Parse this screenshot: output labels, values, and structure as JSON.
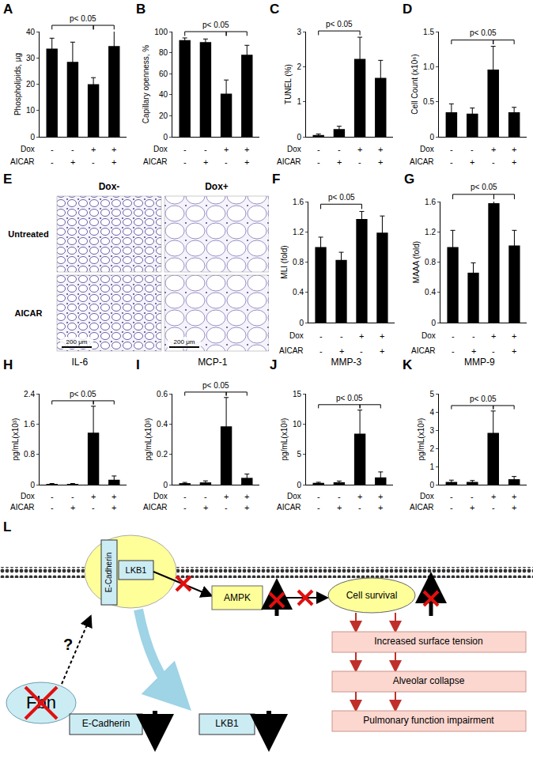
{
  "chart_data": [
    {
      "panel": "A",
      "type": "bar",
      "ylabel": "Phospholipids, μg",
      "categories": [
        null,
        null,
        null,
        null
      ],
      "values": [
        33.5,
        28.5,
        20,
        34.5
      ],
      "errors": [
        4,
        7.5,
        2.5,
        6.5
      ],
      "color": "#000000",
      "ylim": [
        0,
        40
      ],
      "yticks": [
        0,
        10,
        20,
        30,
        40
      ],
      "grid": false,
      "tick_labels": "y",
      "x_table": [
        {
          "label": "Dox",
          "values": [
            "-",
            "-",
            "+",
            "+"
          ]
        },
        {
          "label": "AICAR",
          "values": [
            "-",
            "+",
            "-",
            "+"
          ]
        }
      ],
      "significance": {
        "text": "p< 0.05",
        "brackets": [
          [
            0,
            2
          ],
          [
            2,
            3
          ]
        ]
      }
    },
    {
      "panel": "B",
      "type": "bar",
      "ylabel": "Capillary openness, %",
      "categories": [
        null,
        null,
        null,
        null
      ],
      "values": [
        92,
        90,
        41,
        78
      ],
      "errors": [
        2,
        3,
        13,
        9
      ],
      "color": "#000000",
      "ylim": [
        0,
        100
      ],
      "yticks": [
        0,
        20,
        40,
        60,
        80,
        100
      ],
      "grid": false,
      "tick_labels": "y",
      "x_table": [
        {
          "label": "Dox",
          "values": [
            "-",
            "-",
            "+",
            "+"
          ]
        },
        {
          "label": "AICAR",
          "values": [
            "-",
            "+",
            "-",
            "+"
          ]
        }
      ],
      "significance": {
        "text": "p< 0.05",
        "brackets": [
          [
            0,
            2
          ],
          [
            2,
            3
          ]
        ]
      }
    },
    {
      "panel": "C",
      "type": "bar",
      "ylabel": "TUNEL (%)",
      "categories": [
        null,
        null,
        null,
        null
      ],
      "values": [
        0.05,
        0.22,
        2.22,
        1.68
      ],
      "errors": [
        0.03,
        0.08,
        0.62,
        0.5
      ],
      "color": "#000000",
      "ylim": [
        0,
        3
      ],
      "yticks": [
        0,
        1,
        2,
        3
      ],
      "grid": false,
      "tick_labels": "y",
      "x_table": [
        {
          "label": "Dox",
          "values": [
            "-",
            "-",
            "+",
            "+"
          ]
        },
        {
          "label": "AICAR",
          "values": [
            "-",
            "+",
            "-",
            "+"
          ]
        }
      ],
      "significance": {
        "text": "p< 0.05",
        "brackets": [
          [
            0,
            2
          ]
        ]
      }
    },
    {
      "panel": "D",
      "type": "bar",
      "ylabel": "Cell Count (x10⁶)",
      "categories": [
        null,
        null,
        null,
        null
      ],
      "values": [
        0.35,
        0.33,
        0.96,
        0.35
      ],
      "errors": [
        0.12,
        0.08,
        0.33,
        0.07
      ],
      "color": "#000000",
      "ylim": [
        0,
        1.5
      ],
      "yticks": [
        0,
        0.5,
        {
          "value": 1,
          "label": "1.0"
        },
        1.5
      ],
      "grid": false,
      "tick_labels": "y",
      "x_table": [
        {
          "label": "Dox",
          "values": [
            "-",
            "-",
            "+",
            "+"
          ]
        },
        {
          "label": "AICAR",
          "values": [
            "-",
            "+",
            "-",
            "+"
          ]
        }
      ],
      "significance": {
        "text": "p< 0.05",
        "brackets": [
          [
            0,
            2
          ],
          [
            2,
            3
          ]
        ]
      }
    },
    {
      "panel": "F",
      "type": "bar",
      "ylabel": "MLI (fold)",
      "categories": [
        null,
        null,
        null,
        null
      ],
      "values": [
        1.0,
        0.83,
        1.37,
        1.19
      ],
      "errors": [
        0.13,
        0.1,
        0.1,
        0.22
      ],
      "color": "#000000",
      "ylim": [
        0,
        1.6
      ],
      "yticks": [
        0,
        0.4,
        0.8,
        1.2,
        1.6
      ],
      "grid": false,
      "tick_labels": "y",
      "x_table": [
        {
          "label": "Dox",
          "values": [
            "-",
            "-",
            "+",
            "+"
          ]
        },
        {
          "label": "AICAR",
          "values": [
            "-",
            "+",
            "-",
            "+"
          ]
        }
      ],
      "significance": {
        "text": "p< 0.05",
        "brackets": [
          [
            0,
            2
          ]
        ]
      }
    },
    {
      "panel": "G",
      "type": "bar",
      "ylabel": "MAAA (fold)",
      "categories": [
        null,
        null,
        null,
        null
      ],
      "values": [
        1.0,
        0.66,
        1.58,
        1.02
      ],
      "errors": [
        0.22,
        0.13,
        0.1,
        0.2
      ],
      "color": "#000000",
      "ylim": [
        0,
        1.6
      ],
      "yticks": [
        0,
        0.4,
        0.8,
        1.2,
        1.6
      ],
      "grid": false,
      "tick_labels": "y",
      "x_table": [
        {
          "label": "Dox",
          "values": [
            "-",
            "-",
            "+",
            "+"
          ]
        },
        {
          "label": "AICAR",
          "values": [
            "-",
            "+",
            "-",
            "+"
          ]
        }
      ],
      "significance": {
        "text": "p< 0.05",
        "brackets": [
          [
            0,
            2
          ],
          [
            2,
            3
          ]
        ]
      }
    },
    {
      "panel": "H",
      "type": "bar",
      "title": "IL-6",
      "ylabel": "pg/mL(x10³)",
      "categories": [
        null,
        null,
        null,
        null
      ],
      "values": [
        0.02,
        0.02,
        1.37,
        0.13
      ],
      "errors": [
        0.01,
        0.01,
        0.7,
        0.1
      ],
      "color": "#000000",
      "ylim": [
        0,
        2.4
      ],
      "yticks": [
        0,
        0.8,
        1.6,
        2.4
      ],
      "grid": false,
      "tick_labels": "y",
      "x_table": [
        {
          "label": "Dox",
          "values": [
            "-",
            "-",
            "+",
            "+"
          ]
        },
        {
          "label": "AICAR",
          "values": [
            "-",
            "+",
            "-",
            "+"
          ]
        }
      ],
      "significance": {
        "text": "p< 0.05",
        "brackets": [
          [
            0,
            2
          ],
          [
            2,
            3
          ]
        ]
      }
    },
    {
      "panel": "I",
      "type": "bar",
      "title": "MCP-1",
      "ylabel": "pg/mL(x10³)",
      "categories": [
        null,
        null,
        null,
        null
      ],
      "values": [
        0.01,
        0.015,
        0.385,
        0.045
      ],
      "errors": [
        0.005,
        0.01,
        0.19,
        0.025
      ],
      "color": "#000000",
      "ylim": [
        0,
        0.6
      ],
      "yticks": [
        0,
        0.2,
        0.4,
        0.6
      ],
      "grid": false,
      "tick_labels": "y",
      "x_table": [
        {
          "label": "Dox",
          "values": [
            "-",
            "-",
            "+",
            "+"
          ]
        },
        {
          "label": "AICAR",
          "values": [
            "-",
            "+",
            "-",
            "+"
          ]
        }
      ],
      "significance": {
        "text": "p< 0.05",
        "brackets": [
          [
            0,
            2
          ],
          [
            2,
            3
          ]
        ]
      }
    },
    {
      "panel": "J",
      "type": "bar",
      "title": "MMP-3",
      "ylabel": "pg/mL(x10³)",
      "categories": [
        null,
        null,
        null,
        null
      ],
      "values": [
        0.3,
        0.4,
        8.4,
        1.2
      ],
      "errors": [
        0.1,
        0.2,
        3.9,
        0.9
      ],
      "color": "#000000",
      "ylim": [
        0,
        15
      ],
      "yticks": [
        0,
        5,
        10,
        15
      ],
      "grid": false,
      "tick_labels": "y",
      "x_table": [
        {
          "label": "Dox",
          "values": [
            "-",
            "-",
            "+",
            "+"
          ]
        },
        {
          "label": "AICAR",
          "values": [
            "-",
            "+",
            "-",
            "+"
          ]
        }
      ],
      "significance": {
        "text": "p< 0.05",
        "brackets": [
          [
            0,
            2
          ],
          [
            2,
            3
          ]
        ]
      }
    },
    {
      "panel": "K",
      "type": "bar",
      "title": "MMP-9",
      "ylabel": "pg/mL(x10³)",
      "categories": [
        null,
        null,
        null,
        null
      ],
      "values": [
        0.15,
        0.15,
        2.85,
        0.3
      ],
      "errors": [
        0.1,
        0.08,
        1.2,
        0.15
      ],
      "color": "#000000",
      "ylim": [
        0,
        5
      ],
      "yticks": [
        0,
        1,
        2,
        3,
        4,
        5
      ],
      "grid": false,
      "tick_labels": "y",
      "x_table": [
        {
          "label": "Dox",
          "values": [
            "-",
            "-",
            "+",
            "+"
          ]
        },
        {
          "label": "AICAR",
          "values": [
            "-",
            "+",
            "-",
            "+"
          ]
        }
      ],
      "significance": {
        "text": "p< 0.05",
        "brackets": [
          [
            0,
            2
          ],
          [
            2,
            3
          ]
        ]
      }
    }
  ],
  "image_panel": {
    "panel": "E",
    "columns": [
      "Dox-",
      "Dox+"
    ],
    "rows": [
      "Untreated",
      "AICAR"
    ],
    "scale_bar": "200 μm"
  },
  "diagram": {
    "panel": "L",
    "complex": [
      "E-Cadherin",
      "LKB1"
    ],
    "question": "?",
    "fbn": "Fbn",
    "ampk": "AMPK",
    "survival": "Cell survival",
    "cascade": [
      "Increased surface tension",
      "Alveolar collapse",
      "Pulmonary function impairment"
    ],
    "decreased": [
      "E-Cadherin",
      "LKB1"
    ]
  }
}
